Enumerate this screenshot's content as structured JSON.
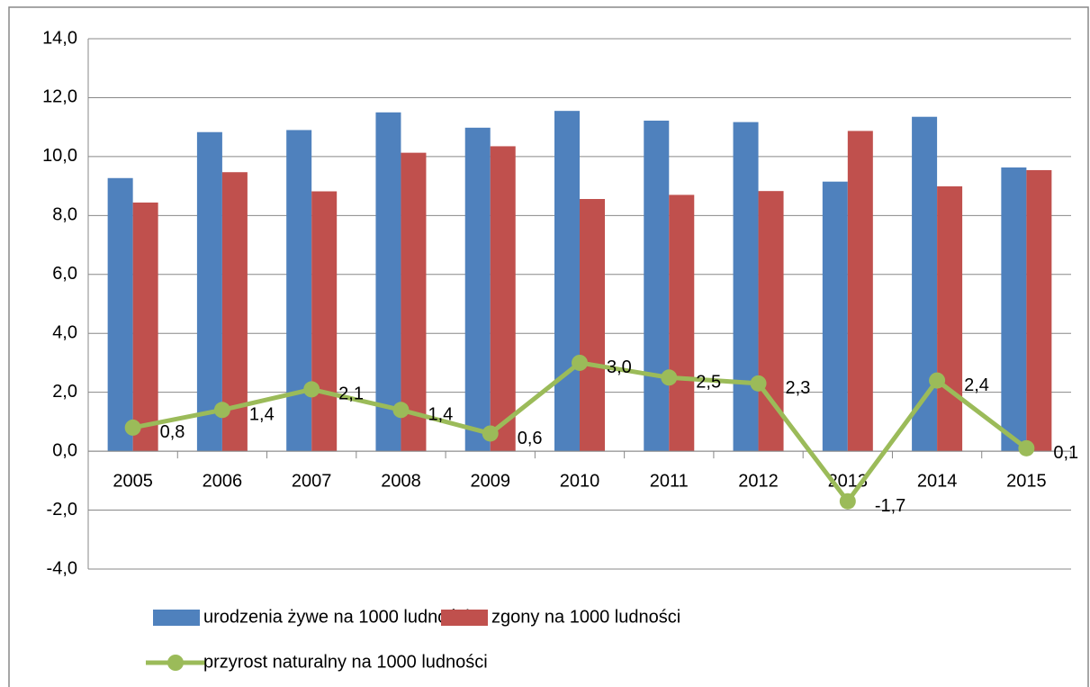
{
  "chart_data": {
    "type": "bar_line",
    "categories": [
      "2005",
      "2006",
      "2007",
      "2008",
      "2009",
      "2010",
      "2011",
      "2012",
      "2013",
      "2014",
      "2015"
    ],
    "series": [
      {
        "name": "urodzenia żywe na 1000 ludności",
        "type": "bar",
        "color": "#4f81bd",
        "values": [
          9.27,
          10.83,
          10.9,
          11.5,
          10.98,
          11.55,
          11.22,
          11.17,
          9.15,
          11.35,
          9.63
        ]
      },
      {
        "name": "zgony na 1000 ludności",
        "type": "bar",
        "color": "#c0504d",
        "values": [
          8.44,
          9.47,
          8.82,
          10.13,
          10.35,
          8.56,
          8.7,
          8.83,
          10.87,
          8.99,
          9.54
        ]
      },
      {
        "name": "przyrost naturalny na 1000 ludności",
        "type": "line",
        "color": "#9bbb59",
        "values": [
          0.8,
          1.4,
          2.1,
          1.4,
          0.6,
          3.0,
          2.5,
          2.3,
          -1.7,
          2.4,
          0.1
        ],
        "value_labels": [
          "0,8",
          "1,4",
          "2,1",
          "1,4",
          "0,6",
          "3,0",
          "2,5",
          "2,3",
          "-1,7",
          "2,4",
          "0,1"
        ]
      }
    ],
    "ylim": [
      -4,
      14
    ],
    "yticks": [
      {
        "value": -4,
        "label": "-4,0"
      },
      {
        "value": -2,
        "label": "-2,0"
      },
      {
        "value": 0,
        "label": "0,0"
      },
      {
        "value": 2,
        "label": "2,0"
      },
      {
        "value": 4,
        "label": "4,0"
      },
      {
        "value": 6,
        "label": "6,0"
      },
      {
        "value": 8,
        "label": "8,0"
      },
      {
        "value": 10,
        "label": "10,0"
      },
      {
        "value": 12,
        "label": "12,0"
      },
      {
        "value": 14,
        "label": "14,0"
      }
    ],
    "grid": true,
    "legend": "bottom"
  }
}
